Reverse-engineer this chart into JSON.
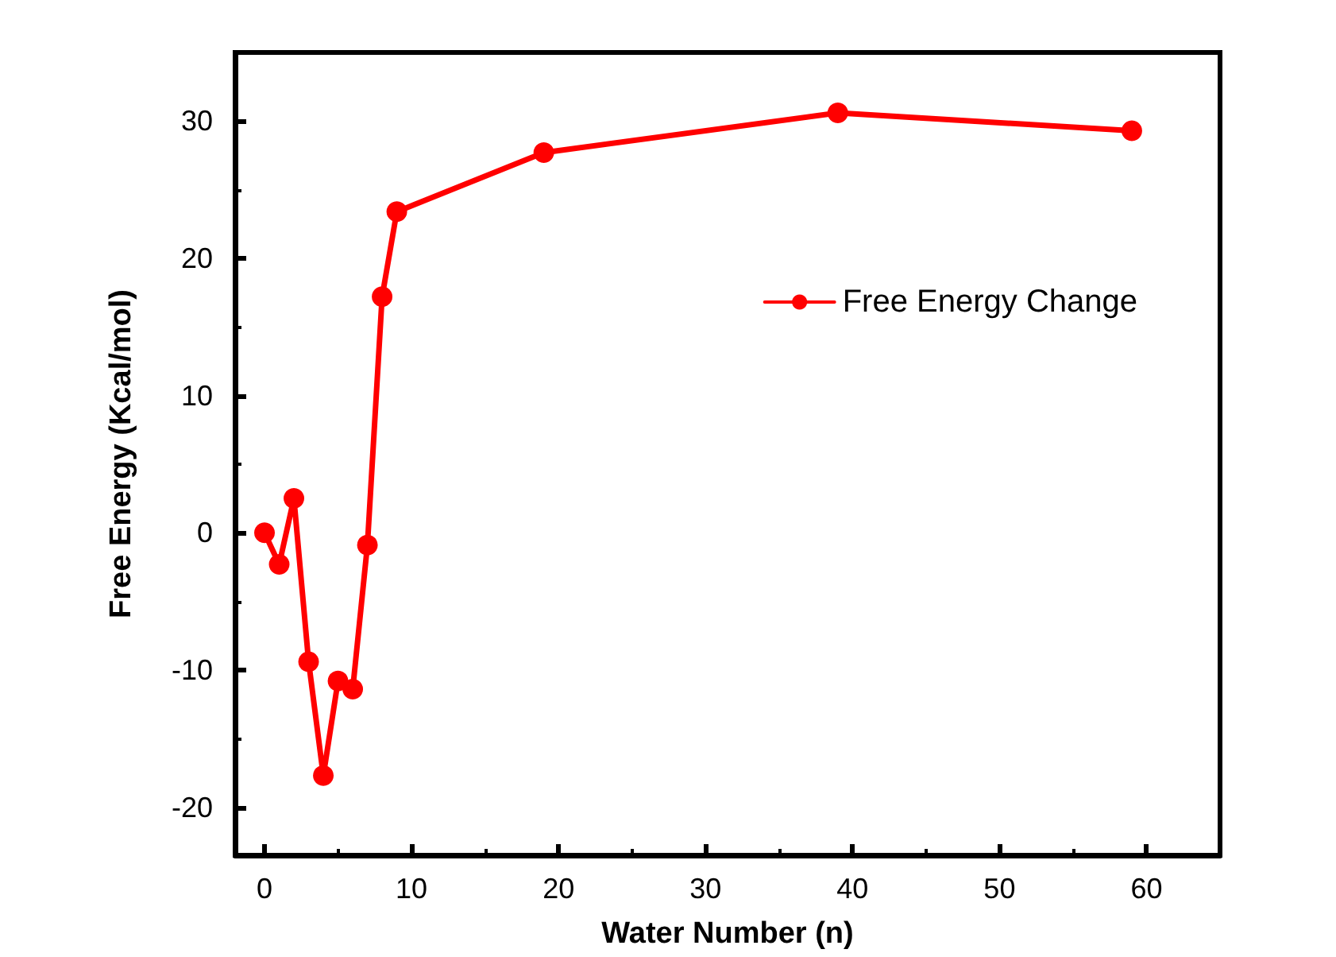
{
  "chart_data": {
    "type": "line",
    "xlabel": "Water Number (n)",
    "ylabel": "Free Energy (Kcal/mol)",
    "x": [
      0,
      1,
      2,
      3,
      4,
      5,
      6,
      7,
      8,
      9,
      19,
      39,
      59
    ],
    "series": [
      {
        "name": "Free Energy Change",
        "color": "#ff0000",
        "values": [
          0,
          -2.3,
          2.5,
          -9.4,
          -17.7,
          -10.8,
          -11.4,
          -0.9,
          17.2,
          23.4,
          27.7,
          30.6,
          29.3
        ]
      }
    ],
    "xlim": [
      -2,
      65
    ],
    "xticks": [
      0,
      10,
      20,
      30,
      40,
      50,
      60
    ],
    "ylim": [
      -23.5,
      35
    ],
    "yticks": [
      -20,
      -10,
      0,
      10,
      20,
      30
    ],
    "grid": false,
    "legend": "top right",
    "marker": "circle",
    "line_style": "solid"
  }
}
